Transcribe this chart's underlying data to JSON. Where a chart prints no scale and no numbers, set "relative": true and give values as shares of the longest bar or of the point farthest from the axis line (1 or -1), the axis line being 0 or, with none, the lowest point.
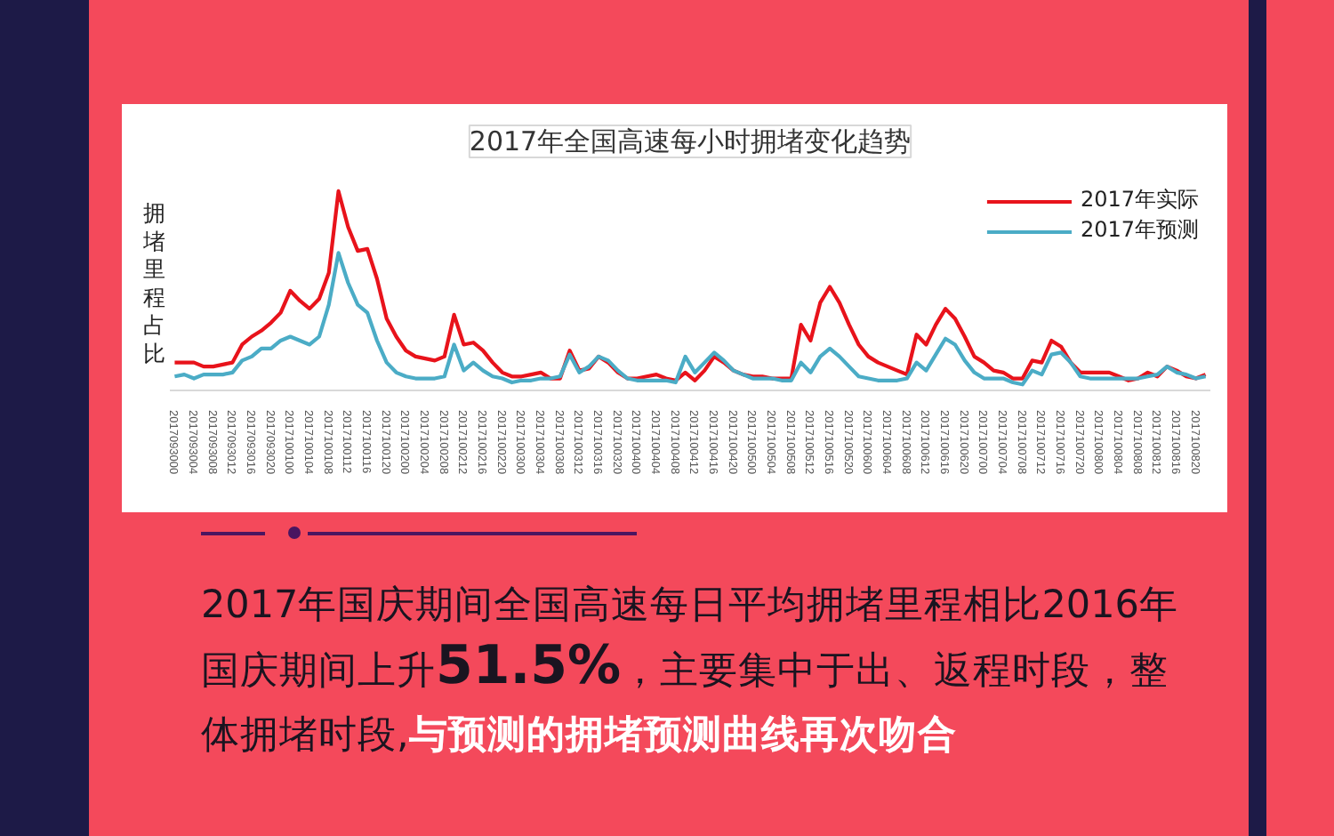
{
  "chart_data": {
    "type": "line",
    "title": "2017年全国高速每小时拥堵变化趋势",
    "ylabel": "拥堵里程占比",
    "relative": true,
    "legend": "top right",
    "annotations": [
      "2017年国庆期间全国高速每日平均拥堵里程相比2016年国庆期间上升",
      "51.5%",
      "，主要集中于出、返程时段，整体拥堵时段,",
      "与预测的拥堵预测曲线再次吻合"
    ],
    "xlim": [
      "2017-09-29T23:00",
      "2017-10-08T23:00"
    ],
    "xticks": [
      {
        "value": "2017-09-30T00:00",
        "label": "2017093000"
      },
      {
        "value": "2017-09-30T04:00",
        "label": "2017093004"
      },
      {
        "value": "2017-09-30T08:00",
        "label": "2017093008"
      },
      {
        "value": "2017-09-30T12:00",
        "label": "2017093012"
      },
      {
        "value": "2017-09-30T16:00",
        "label": "2017093016"
      },
      {
        "value": "2017-09-30T20:00",
        "label": "2017093020"
      },
      {
        "value": "2017-10-01T00:00",
        "label": "2017100100"
      },
      {
        "value": "2017-10-01T04:00",
        "label": "2017100104"
      },
      {
        "value": "2017-10-01T08:00",
        "label": "2017100108"
      },
      {
        "value": "2017-10-01T12:00",
        "label": "2017100112"
      },
      {
        "value": "2017-10-01T16:00",
        "label": "2017100116"
      },
      {
        "value": "2017-10-01T20:00",
        "label": "2017100120"
      },
      {
        "value": "2017-10-02T00:00",
        "label": "2017100200"
      },
      {
        "value": "2017-10-02T04:00",
        "label": "2017100204"
      },
      {
        "value": "2017-10-02T08:00",
        "label": "2017100208"
      },
      {
        "value": "2017-10-02T12:00",
        "label": "2017100212"
      },
      {
        "value": "2017-10-02T16:00",
        "label": "2017100216"
      },
      {
        "value": "2017-10-02T20:00",
        "label": "2017100220"
      },
      {
        "value": "2017-10-03T00:00",
        "label": "2017100300"
      },
      {
        "value": "2017-10-03T04:00",
        "label": "2017100304"
      },
      {
        "value": "2017-10-03T08:00",
        "label": "2017100308"
      },
      {
        "value": "2017-10-03T12:00",
        "label": "2017100312"
      },
      {
        "value": "2017-10-03T16:00",
        "label": "2017100316"
      },
      {
        "value": "2017-10-03T20:00",
        "label": "2017100320"
      },
      {
        "value": "2017-10-04T00:00",
        "label": "2017100400"
      },
      {
        "value": "2017-10-04T04:00",
        "label": "2017100404"
      },
      {
        "value": "2017-10-04T08:00",
        "label": "2017100408"
      },
      {
        "value": "2017-10-04T12:00",
        "label": "2017100412"
      },
      {
        "value": "2017-10-04T16:00",
        "label": "2017100416"
      },
      {
        "value": "2017-10-04T20:00",
        "label": "2017100420"
      },
      {
        "value": "2017-10-05T00:00",
        "label": "2017100500"
      },
      {
        "value": "2017-10-05T04:00",
        "label": "2017100504"
      },
      {
        "value": "2017-10-05T08:00",
        "label": "2017100508"
      },
      {
        "value": "2017-10-05T12:00",
        "label": "2017100512"
      },
      {
        "value": "2017-10-05T16:00",
        "label": "2017100516"
      },
      {
        "value": "2017-10-05T20:00",
        "label": "2017100520"
      },
      {
        "value": "2017-10-06T00:00",
        "label": "2017100600"
      },
      {
        "value": "2017-10-06T04:00",
        "label": "2017100604"
      },
      {
        "value": "2017-10-06T08:00",
        "label": "2017100608"
      },
      {
        "value": "2017-10-06T12:00",
        "label": "2017100612"
      },
      {
        "value": "2017-10-06T16:00",
        "label": "2017100616"
      },
      {
        "value": "2017-10-06T20:00",
        "label": "2017100620"
      },
      {
        "value": "2017-10-07T00:00",
        "label": "2017100700"
      },
      {
        "value": "2017-10-07T04:00",
        "label": "2017100704"
      },
      {
        "value": "2017-10-07T08:00",
        "label": "2017100708"
      },
      {
        "value": "2017-10-07T12:00",
        "label": "2017100712"
      },
      {
        "value": "2017-10-07T16:00",
        "label": "2017100716"
      },
      {
        "value": "2017-10-07T20:00",
        "label": "2017100720"
      },
      {
        "value": "2017-10-08T00:00",
        "label": "2017100800"
      },
      {
        "value": "2017-10-08T04:00",
        "label": "2017100804"
      },
      {
        "value": "2017-10-08T08:00",
        "label": "2017100808"
      },
      {
        "value": "2017-10-08T12:00",
        "label": "2017100812"
      },
      {
        "value": "2017-10-08T16:00",
        "label": "2017100816"
      },
      {
        "value": "2017-10-08T20:00",
        "label": "2017100820"
      }
    ],
    "x": [
      "2017-09-30T00:00",
      "2017-09-30T02:00",
      "2017-09-30T04:00",
      "2017-09-30T06:00",
      "2017-09-30T08:00",
      "2017-09-30T10:00",
      "2017-09-30T12:00",
      "2017-09-30T14:00",
      "2017-09-30T16:00",
      "2017-09-30T18:00",
      "2017-09-30T20:00",
      "2017-09-30T22:00",
      "2017-10-01T00:00",
      "2017-10-01T02:00",
      "2017-10-01T04:00",
      "2017-10-01T06:00",
      "2017-10-01T08:00",
      "2017-10-01T10:00",
      "2017-10-01T12:00",
      "2017-10-01T14:00",
      "2017-10-01T16:00",
      "2017-10-01T18:00",
      "2017-10-01T20:00",
      "2017-10-01T22:00",
      "2017-10-02T00:00",
      "2017-10-02T02:00",
      "2017-10-02T04:00",
      "2017-10-02T06:00",
      "2017-10-02T08:00",
      "2017-10-02T10:00",
      "2017-10-02T12:00",
      "2017-10-02T14:00",
      "2017-10-02T16:00",
      "2017-10-02T18:00",
      "2017-10-02T20:00",
      "2017-10-02T22:00",
      "2017-10-03T00:00",
      "2017-10-03T02:00",
      "2017-10-03T04:00",
      "2017-10-03T06:00",
      "2017-10-03T08:00",
      "2017-10-03T10:00",
      "2017-10-03T12:00",
      "2017-10-03T14:00",
      "2017-10-03T16:00",
      "2017-10-03T18:00",
      "2017-10-03T20:00",
      "2017-10-03T22:00",
      "2017-10-04T00:00",
      "2017-10-04T02:00",
      "2017-10-04T04:00",
      "2017-10-04T06:00",
      "2017-10-04T08:00",
      "2017-10-04T10:00",
      "2017-10-04T12:00",
      "2017-10-04T14:00",
      "2017-10-04T16:00",
      "2017-10-04T18:00",
      "2017-10-04T20:00",
      "2017-10-04T22:00",
      "2017-10-05T00:00",
      "2017-10-05T02:00",
      "2017-10-05T04:00",
      "2017-10-05T06:00",
      "2017-10-05T08:00",
      "2017-10-05T10:00",
      "2017-10-05T12:00",
      "2017-10-05T14:00",
      "2017-10-05T16:00",
      "2017-10-05T18:00",
      "2017-10-05T20:00",
      "2017-10-05T22:00",
      "2017-10-06T00:00",
      "2017-10-06T02:00",
      "2017-10-06T04:00",
      "2017-10-06T06:00",
      "2017-10-06T08:00",
      "2017-10-06T10:00",
      "2017-10-06T12:00",
      "2017-10-06T14:00",
      "2017-10-06T16:00",
      "2017-10-06T18:00",
      "2017-10-06T20:00",
      "2017-10-06T22:00",
      "2017-10-07T00:00",
      "2017-10-07T02:00",
      "2017-10-07T04:00",
      "2017-10-07T06:00",
      "2017-10-07T08:00",
      "2017-10-07T10:00",
      "2017-10-07T12:00",
      "2017-10-07T14:00",
      "2017-10-07T16:00",
      "2017-10-07T18:00",
      "2017-10-07T20:00",
      "2017-10-07T22:00",
      "2017-10-08T00:00",
      "2017-10-08T02:00",
      "2017-10-08T04:00",
      "2017-10-08T06:00",
      "2017-10-08T08:00",
      "2017-10-08T10:00",
      "2017-10-08T12:00",
      "2017-10-08T14:00",
      "2017-10-08T16:00",
      "2017-10-08T18:00",
      "2017-10-08T20:00",
      "2017-10-08T22:00"
    ],
    "series": [
      {
        "name": "2017年实际",
        "color": "#e8131b",
        "values": [
          0.14,
          0.14,
          0.14,
          0.12,
          0.12,
          0.13,
          0.14,
          0.23,
          0.27,
          0.3,
          0.34,
          0.39,
          0.5,
          0.45,
          0.41,
          0.46,
          0.59,
          1.0,
          0.82,
          0.7,
          0.71,
          0.56,
          0.36,
          0.27,
          0.2,
          0.17,
          0.16,
          0.15,
          0.17,
          0.38,
          0.23,
          0.24,
          0.2,
          0.14,
          0.09,
          0.07,
          0.07,
          0.08,
          0.09,
          0.06,
          0.06,
          0.2,
          0.1,
          0.11,
          0.17,
          0.14,
          0.09,
          0.06,
          0.06,
          0.07,
          0.08,
          0.06,
          0.05,
          0.09,
          0.05,
          0.1,
          0.17,
          0.14,
          0.1,
          0.08,
          0.07,
          0.07,
          0.06,
          0.06,
          0.06,
          0.33,
          0.25,
          0.44,
          0.52,
          0.44,
          0.33,
          0.23,
          0.17,
          0.14,
          0.12,
          0.1,
          0.08,
          0.28,
          0.23,
          0.33,
          0.41,
          0.36,
          0.27,
          0.17,
          0.14,
          0.1,
          0.09,
          0.06,
          0.06,
          0.15,
          0.14,
          0.25,
          0.22,
          0.14,
          0.09,
          0.09,
          0.09,
          0.09,
          0.07,
          0.05,
          0.06,
          0.09,
          0.07,
          0.12,
          0.1,
          0.07,
          0.06,
          0.08
        ]
      },
      {
        "name": "2017年预测",
        "color": "#4bacc6",
        "values": [
          0.07,
          0.08,
          0.06,
          0.08,
          0.08,
          0.08,
          0.09,
          0.15,
          0.17,
          0.21,
          0.21,
          0.25,
          0.27,
          0.25,
          0.23,
          0.27,
          0.43,
          0.69,
          0.54,
          0.43,
          0.39,
          0.25,
          0.14,
          0.09,
          0.07,
          0.06,
          0.06,
          0.06,
          0.07,
          0.23,
          0.1,
          0.14,
          0.1,
          0.07,
          0.06,
          0.04,
          0.05,
          0.05,
          0.06,
          0.06,
          0.07,
          0.18,
          0.09,
          0.12,
          0.17,
          0.15,
          0.1,
          0.06,
          0.05,
          0.05,
          0.05,
          0.05,
          0.04,
          0.17,
          0.09,
          0.14,
          0.19,
          0.15,
          0.1,
          0.08,
          0.06,
          0.06,
          0.06,
          0.05,
          0.05,
          0.14,
          0.09,
          0.17,
          0.21,
          0.17,
          0.12,
          0.07,
          0.06,
          0.05,
          0.05,
          0.05,
          0.06,
          0.14,
          0.1,
          0.18,
          0.26,
          0.23,
          0.15,
          0.09,
          0.06,
          0.06,
          0.06,
          0.04,
          0.03,
          0.1,
          0.08,
          0.18,
          0.19,
          0.14,
          0.07,
          0.06,
          0.06,
          0.06,
          0.06,
          0.06,
          0.06,
          0.07,
          0.08,
          0.12,
          0.09,
          0.08,
          0.06,
          0.07
        ]
      }
    ]
  }
}
